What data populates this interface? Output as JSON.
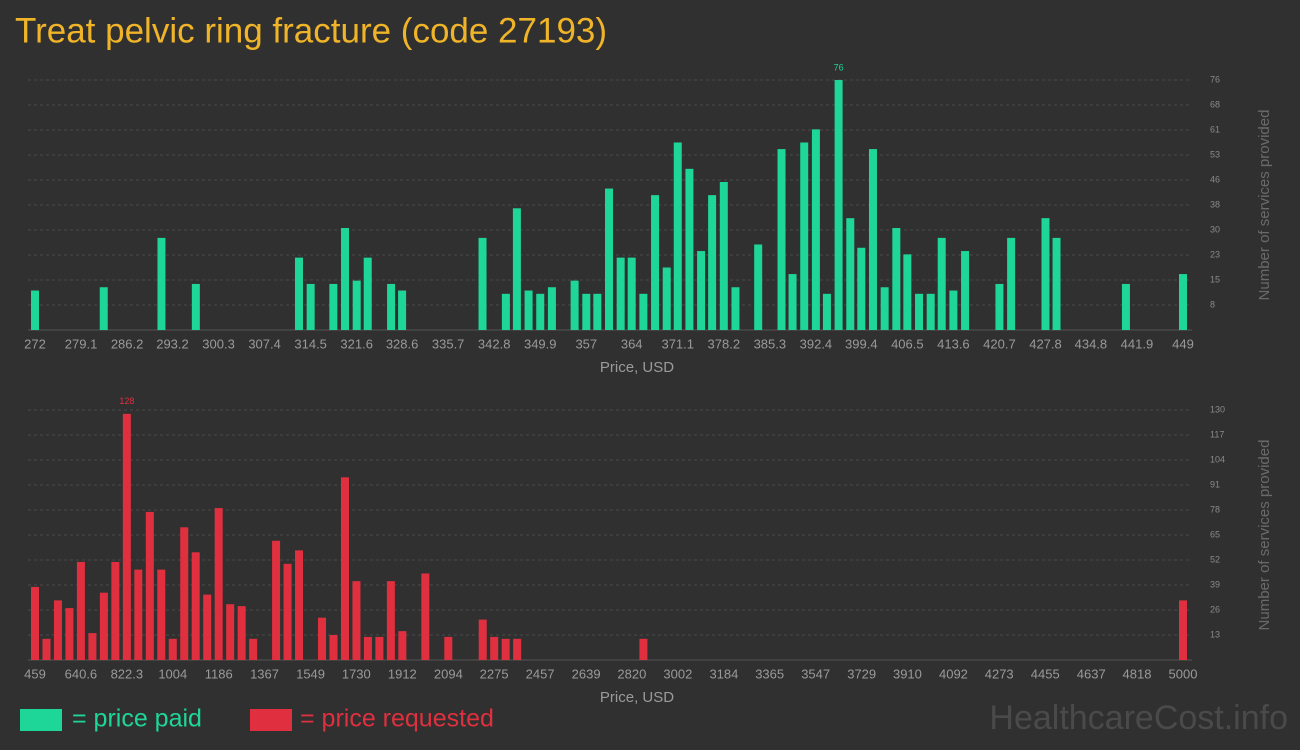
{
  "title": "Treat pelvic ring fracture (code 27193)",
  "watermark": "HealthcareCost.info",
  "chart_data": [
    {
      "type": "bar",
      "x": [
        272,
        282.6,
        291.5,
        296.8,
        312.7,
        314.5,
        318,
        319.8,
        321.6,
        323.3,
        326.9,
        328.6,
        341,
        344.6,
        346.3,
        348.1,
        349.9,
        351.7,
        355.2,
        357,
        358.7,
        360.5,
        362.3,
        364,
        365.8,
        367.6,
        369.4,
        371.1,
        372.9,
        374.7,
        376.4,
        378.2,
        380,
        383.5,
        387.1,
        388.8,
        390.6,
        392.4,
        394.1,
        395.9,
        397.7,
        399.4,
        401.2,
        403,
        404.8,
        406.5,
        408.3,
        410.1,
        411.8,
        413.6,
        415.4,
        420.7,
        422.5,
        427.8,
        429.5,
        440.2,
        449
      ],
      "series": [
        {
          "name": "= price paid",
          "color": "#1fd699",
          "values": [
            12,
            13,
            28,
            14,
            22,
            14,
            14,
            31,
            15,
            22,
            14,
            12,
            28,
            11,
            37,
            12,
            11,
            13,
            15,
            11,
            11,
            43,
            22,
            22,
            11,
            41,
            19,
            57,
            49,
            24,
            41,
            45,
            13,
            26,
            55,
            17,
            57,
            61,
            11,
            76,
            34,
            25,
            55,
            13,
            31,
            23,
            11,
            11,
            28,
            12,
            24,
            14,
            28,
            34,
            28,
            14,
            17
          ]
        }
      ],
      "xlim": [
        272,
        449
      ],
      "xticks": [
        272,
        279.1,
        286.2,
        293.2,
        300.3,
        307.4,
        314.5,
        321.6,
        328.6,
        335.7,
        342.8,
        349.9,
        357,
        364,
        371.1,
        378.2,
        385.3,
        392.4,
        399.4,
        406.5,
        413.6,
        420.7,
        427.8,
        434.8,
        441.9,
        449
      ],
      "ylim": [
        0,
        76
      ],
      "yticks": [
        {
          "value": 7.6,
          "label": "8"
        },
        {
          "value": 15.2,
          "label": "15"
        },
        {
          "value": 22.8,
          "label": "23"
        },
        {
          "value": 30.4,
          "label": "30"
        },
        38,
        {
          "value": 45.6,
          "label": "46"
        },
        {
          "value": 53.2,
          "label": "53"
        },
        {
          "value": 60.8,
          "label": "61"
        },
        {
          "value": 68.4,
          "label": "68"
        },
        76
      ],
      "xlabel": "Price, USD",
      "ylabel": "Number of services provided",
      "grid": true
    },
    {
      "type": "bar",
      "x": [
        459,
        504.4,
        549.8,
        595.2,
        640.6,
        686.1,
        731.5,
        776.9,
        822.3,
        867.7,
        913.1,
        958.5,
        1004,
        1049.3,
        1094.7,
        1140.2,
        1185.6,
        1231,
        1276.4,
        1321.8,
        1412.6,
        1458,
        1503.4,
        1594.3,
        1639.7,
        1685.1,
        1730.5,
        1775.9,
        1821.3,
        1866.7,
        1912.1,
        2003,
        2093.8,
        2230,
        2275.4,
        2320.8,
        2366.2,
        2865.7,
        5000
      ],
      "series": [
        {
          "name": "= price requested",
          "color": "#e0303f",
          "values": [
            38,
            11,
            31,
            27,
            51,
            14,
            35,
            51,
            128,
            47,
            77,
            47,
            11,
            69,
            56,
            34,
            79,
            29,
            28,
            11,
            62,
            50,
            57,
            22,
            13,
            95,
            41,
            12,
            12,
            41,
            15,
            45,
            12,
            21,
            12,
            11,
            11,
            11,
            31
          ]
        }
      ],
      "xlim": [
        459,
        5000
      ],
      "xticks": [
        459,
        640.6,
        822.3,
        1004,
        1186,
        1367,
        1549,
        1730,
        1912,
        2094,
        2275,
        2457,
        2639,
        2820,
        3002,
        3184,
        3365,
        3547,
        3729,
        3910,
        4092,
        4273,
        4455,
        4637,
        4818,
        5000
      ],
      "ylim": [
        0,
        130
      ],
      "yticks": [
        13,
        26,
        39,
        52,
        65,
        78,
        91,
        104,
        117,
        130
      ],
      "xlabel": "Price, USD",
      "ylabel": "Number of services provided",
      "grid": true
    }
  ]
}
